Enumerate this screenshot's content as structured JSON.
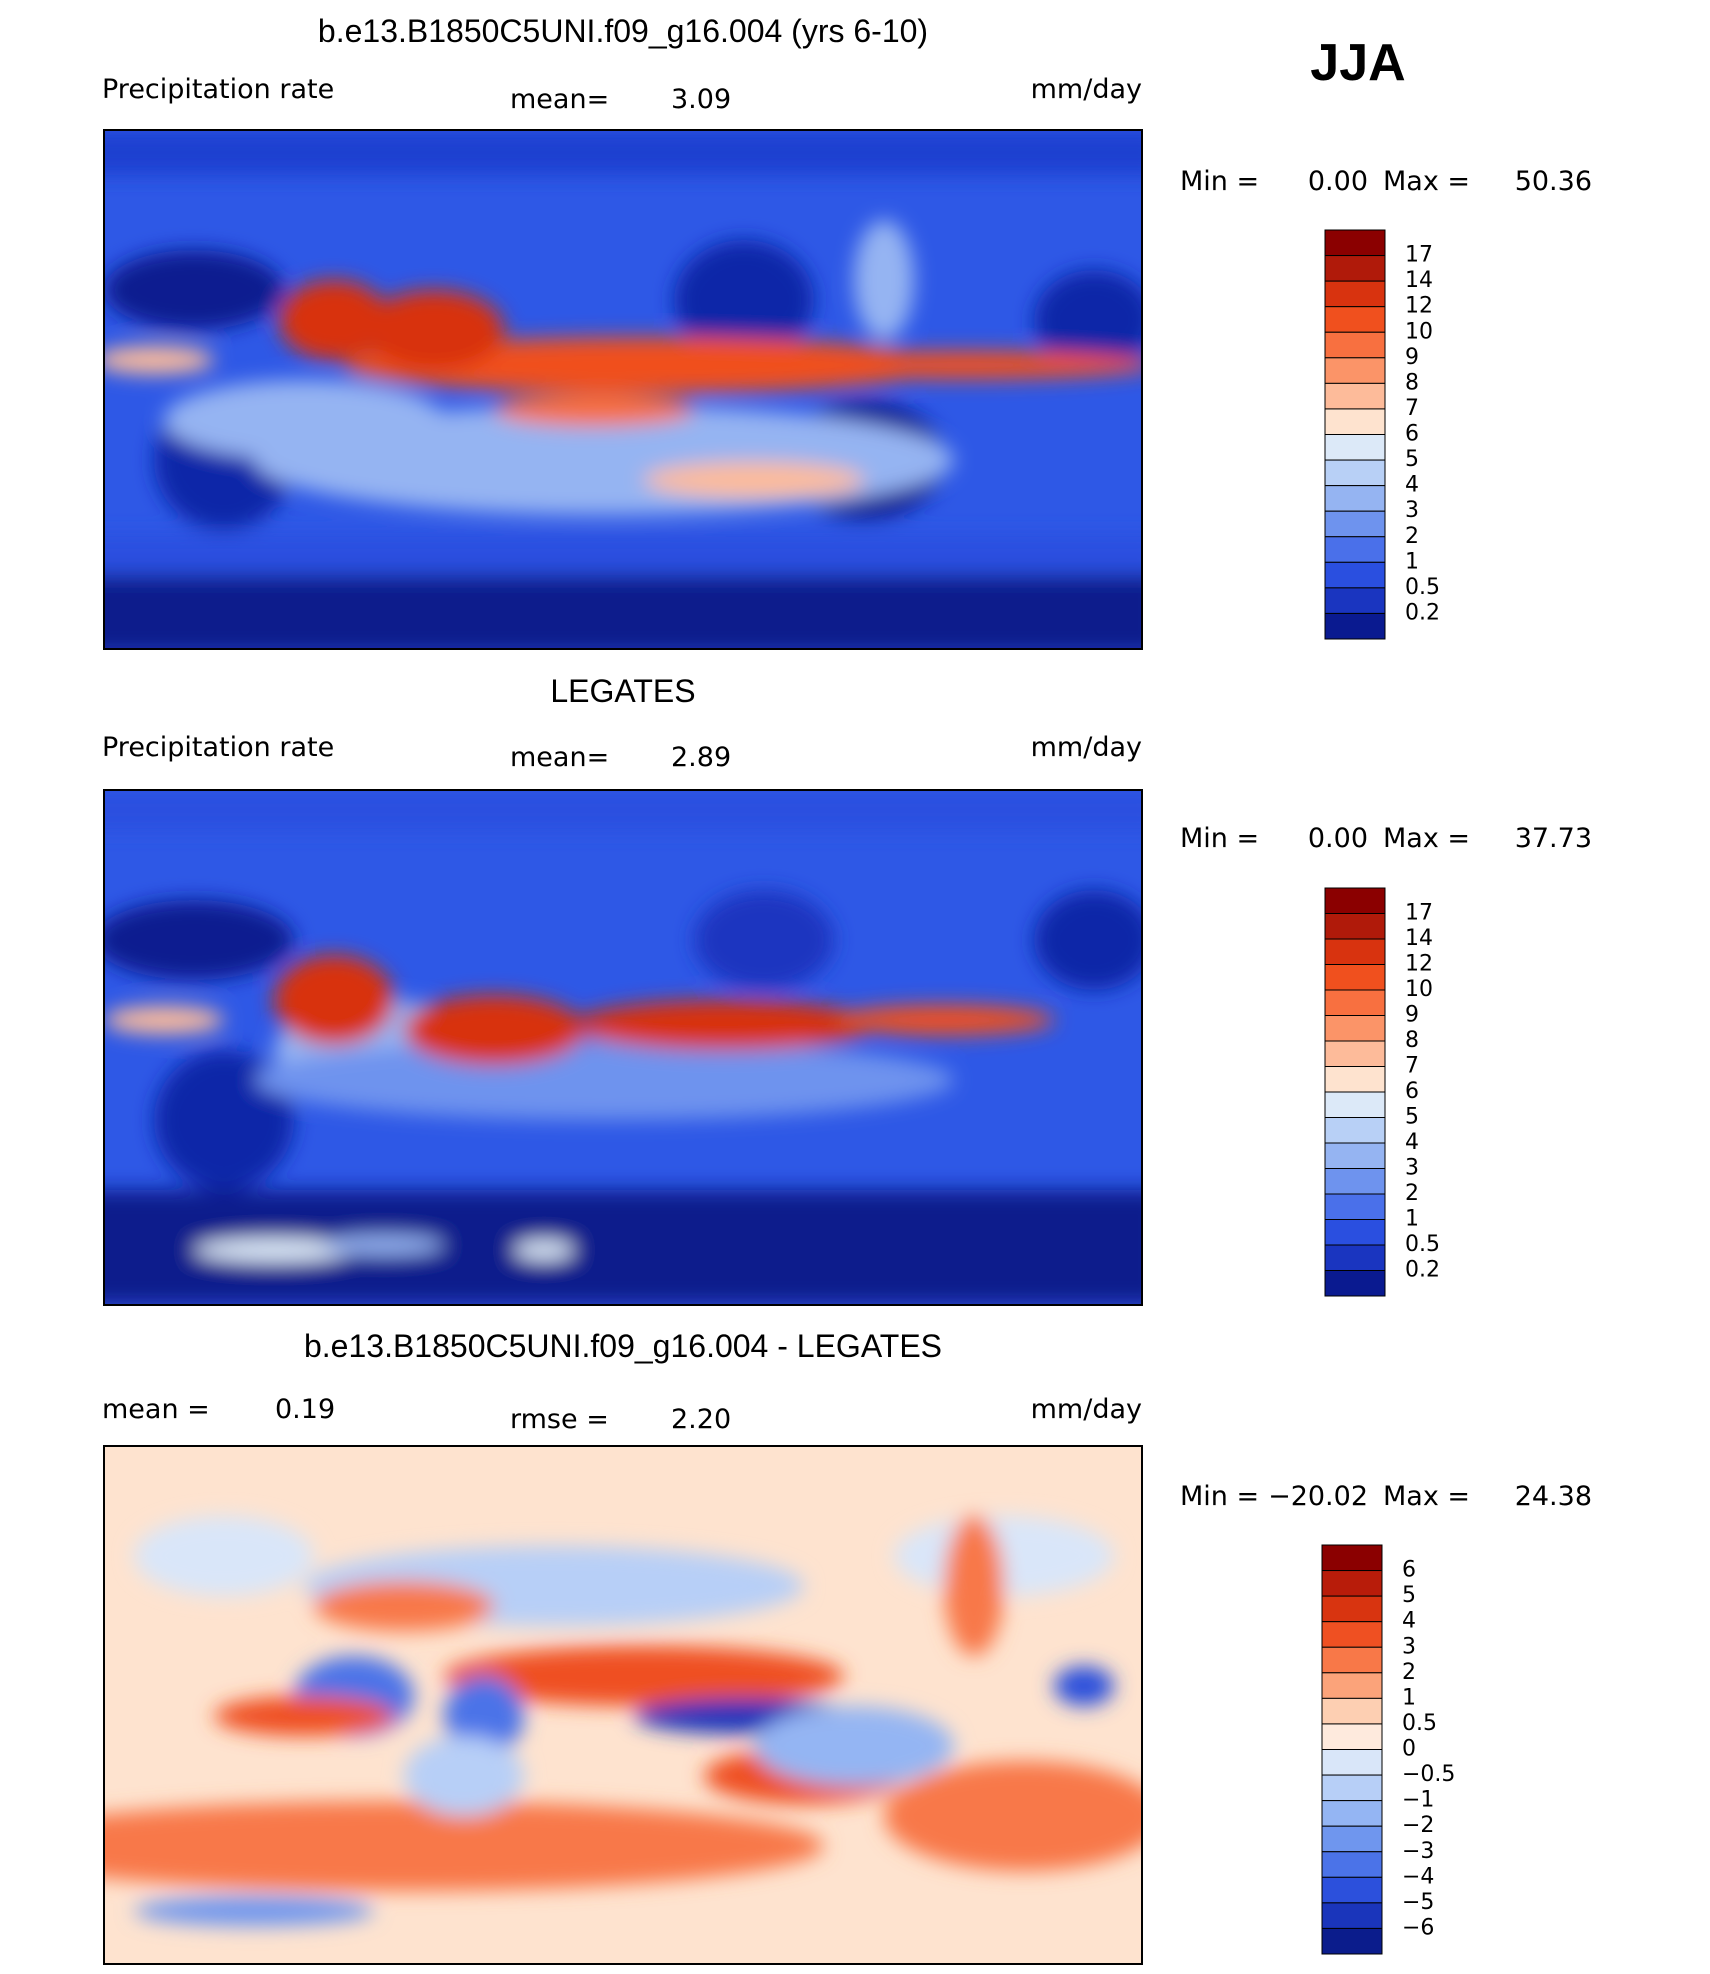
{
  "season": "JJA",
  "panels": [
    {
      "title": "b.e13.B1850C5UNI.f09_g16.004 (yrs 6-10)",
      "left_label": "Precipitation rate",
      "mid_label": "mean=",
      "mid_value": "3.09",
      "units": "mm/day",
      "min_label": "Min =",
      "min_value": "0.00",
      "max_label": "Max =",
      "max_value": "50.36",
      "colorbar": {
        "colors": [
          "#8b0000",
          "#b01a0a",
          "#d8330f",
          "#f0501e",
          "#f87040",
          "#fb9468",
          "#fdbb9a",
          "#fee3cf",
          "#dce9f8",
          "#b8d0f6",
          "#95b4f2",
          "#6e93ee",
          "#4a70ea",
          "#2a4fe0",
          "#1a35c0",
          "#0a1a90"
        ],
        "labels": [
          "17",
          "14",
          "12",
          "10",
          "9",
          "8",
          "7",
          "6",
          "5",
          "4",
          "3",
          "2",
          "1",
          "0.5",
          "0.2"
        ]
      }
    },
    {
      "title": "LEGATES",
      "left_label": "Precipitation rate",
      "mid_label": "mean=",
      "mid_value": "2.89",
      "units": "mm/day",
      "min_label": "Min =",
      "min_value": "0.00",
      "max_label": "Max =",
      "max_value": "37.73",
      "colorbar": {
        "colors": [
          "#8b0000",
          "#b01a0a",
          "#d8330f",
          "#f0501e",
          "#f87040",
          "#fb9468",
          "#fdbb9a",
          "#fee3cf",
          "#dce9f8",
          "#b8d0f6",
          "#95b4f2",
          "#6e93ee",
          "#4a70ea",
          "#2a4fe0",
          "#1a35c0",
          "#0a1a90"
        ],
        "labels": [
          "17",
          "14",
          "12",
          "10",
          "9",
          "8",
          "7",
          "6",
          "5",
          "4",
          "3",
          "2",
          "1",
          "0.5",
          "0.2"
        ]
      }
    },
    {
      "title": "b.e13.B1850C5UNI.f09_g16.004 - LEGATES",
      "left_label": "mean =",
      "left_value": "0.19",
      "mid_label": "rmse =",
      "mid_value": "2.20",
      "units": "mm/day",
      "min_label": "Min =",
      "min_value": "−20.02",
      "max_label": "Max =",
      "max_value": "24.38",
      "colorbar": {
        "colors": [
          "#8b0000",
          "#b81c0a",
          "#d83410",
          "#ef5022",
          "#f87848",
          "#fba37a",
          "#fdcfb2",
          "#feeadd",
          "#d9e6f9",
          "#b7cff7",
          "#94b5f3",
          "#6f96ee",
          "#4b73e8",
          "#2c50dc",
          "#1a35bb",
          "#0b1c8c"
        ],
        "labels": [
          "6",
          "5",
          "4",
          "3",
          "2",
          "1",
          "0.5",
          "0",
          "−0.5",
          "−1",
          "−2",
          "−3",
          "−4",
          "−5",
          "−6"
        ]
      }
    }
  ]
}
